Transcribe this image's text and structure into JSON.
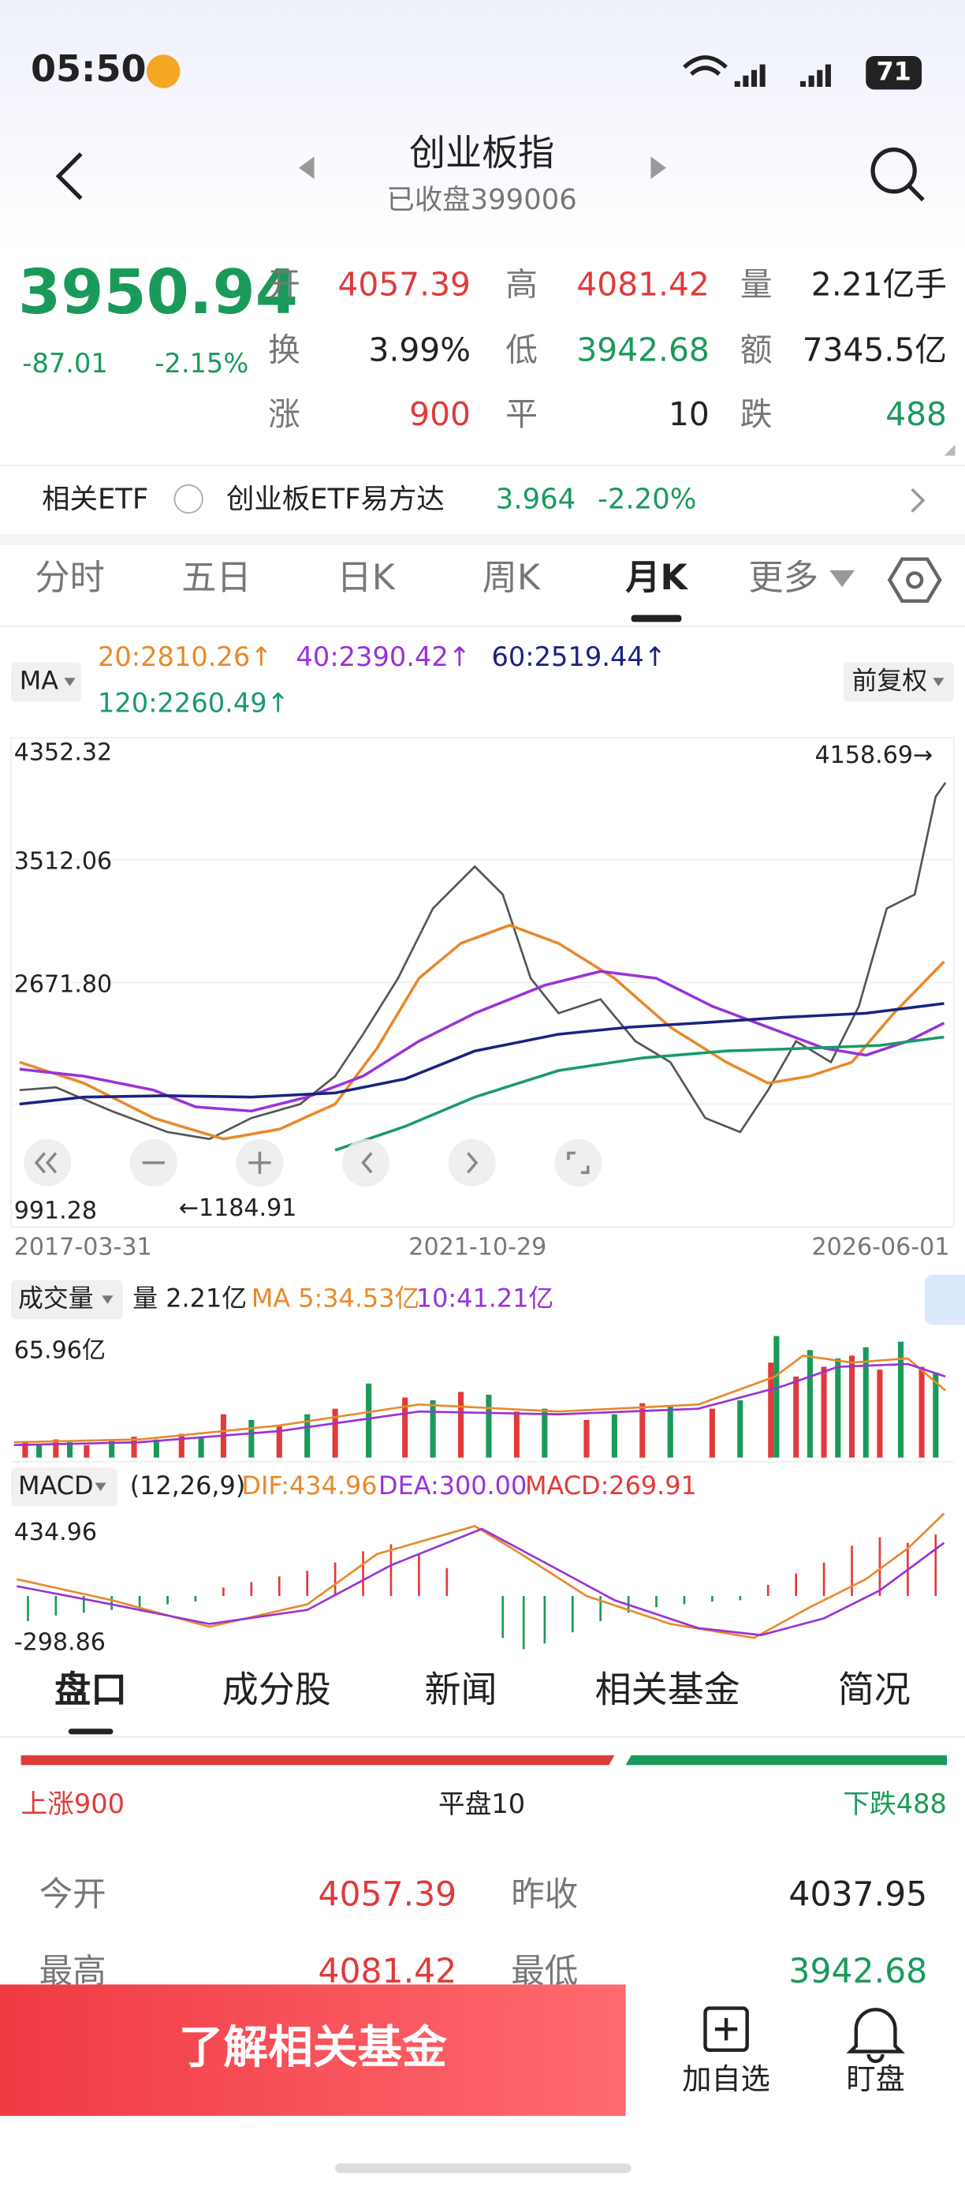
{
  "status": {
    "time": "05:50",
    "battery": "71"
  },
  "header": {
    "title": "创业板指",
    "subtitle": "已收盘399006"
  },
  "quote": {
    "price": "3950.94",
    "change": "-87.01",
    "change_pct": "-2.15%"
  },
  "stats": [
    [
      {
        "label": "开",
        "value": "4057.39"
      },
      {
        "label": "高",
        "value": "4081.42"
      },
      {
        "label": "量",
        "value": "2.21亿手"
      }
    ],
    [
      {
        "label": "换",
        "value": "3.99%"
      },
      {
        "label": "低",
        "value": "3942.68"
      },
      {
        "label": "额",
        "value": "7345.5亿"
      }
    ],
    [
      {
        "label": "涨",
        "value": "900"
      },
      {
        "label": "平",
        "value": "10"
      },
      {
        "label": "跌",
        "value": "488"
      }
    ]
  ],
  "etf": {
    "label": "相关ETF",
    "name": "创业板ETF易方达",
    "price": "3.964",
    "change_pct": "-2.20%"
  },
  "tabs": [
    "分时",
    "五日",
    "日K",
    "周K",
    "月K",
    "更多"
  ],
  "ma": {
    "label": "MA",
    "ma20": "20:2810.26↑",
    "ma40": "40:2390.42↑",
    "ma60": "60:2519.44↑",
    "ma120": "120:2260.49↑",
    "adjust": "前复权"
  },
  "kchart": {
    "price_labels": [
      "4352.32",
      "3512.06",
      "2671.80",
      "991.28"
    ],
    "high": "4158.69→",
    "low": "←1184.91",
    "dates": [
      "2017-03-31",
      "2021-10-29",
      "2026-06-01"
    ]
  },
  "volume": {
    "label": "成交量",
    "vol": "量 2.21亿",
    "ma5": "MA 5:34.53亿",
    "ma10": "10:41.21亿",
    "max": "65.96亿"
  },
  "macd": {
    "label": "MACD",
    "params": "(12,26,9)",
    "dif": "DIF:434.96",
    "dea": "DEA:300.00",
    "macd": "MACD:269.91",
    "max": "434.96",
    "min": "-298.86"
  },
  "bottom_tabs": [
    "盘口",
    "成分股",
    "新闻",
    "相关基金",
    "简况"
  ],
  "breadth": {
    "up": "上涨900",
    "flat": "平盘10",
    "down": "下跌488"
  },
  "details": [
    [
      {
        "label": "今开",
        "value": "4057.39"
      },
      {
        "label": "昨收",
        "value": "4037.95"
      }
    ],
    [
      {
        "label": "最高",
        "value": "4081.42"
      },
      {
        "label": "最低",
        "value": "3942.68"
      }
    ]
  ],
  "footer": {
    "button": "了解相关基金",
    "watch": "加自选",
    "monitor": "盯盘"
  }
}
